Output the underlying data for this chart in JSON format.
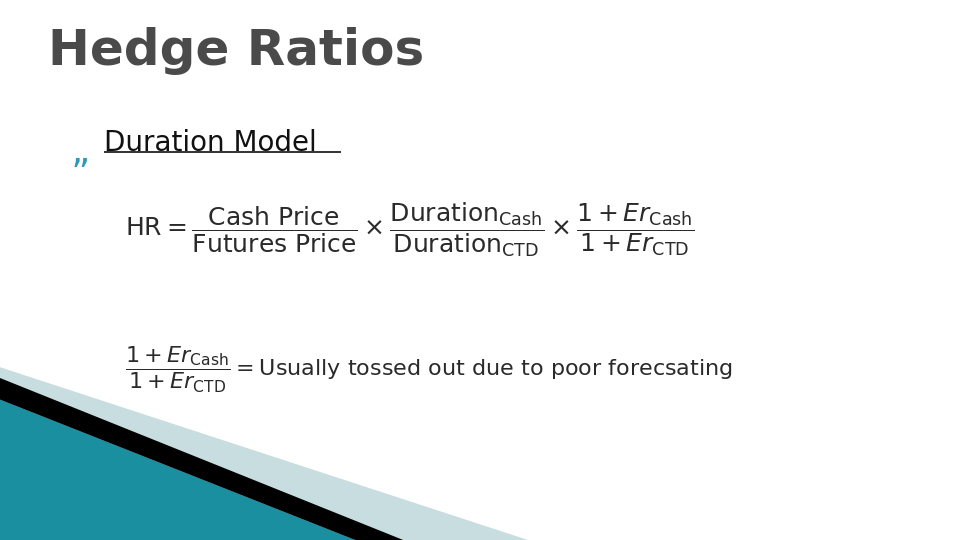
{
  "title": "Hedge Ratios",
  "title_color": "#4a4a4a",
  "title_fontsize": 36,
  "subtitle": "Duration Model",
  "subtitle_color": "#2a9ab5",
  "subtitle_fontsize": 20,
  "background_color": "#ffffff",
  "formula_color": "#2a2a2a",
  "formula1_fontsize": 18,
  "formula2_fontsize": 16,
  "teal_color": "#1a8fa0",
  "black_color": "#000000",
  "light_blue_color": "#c8dde0"
}
